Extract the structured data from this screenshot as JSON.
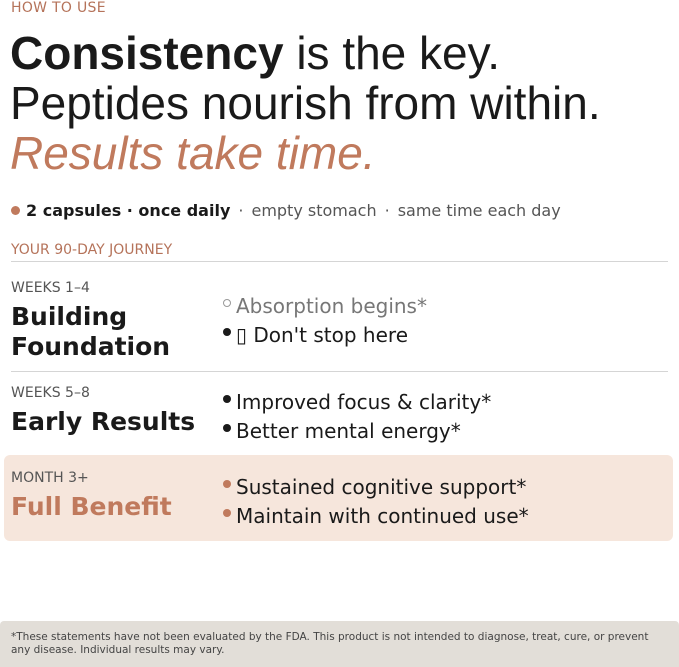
{
  "eyebrow": "HOW TO USE",
  "headline": {
    "bold": "Consistency",
    "rest": "is the key.",
    "line2": "Peptides nourish from within.",
    "line3": "Results take time."
  },
  "dosage": {
    "items": [
      "2 capsules · once daily",
      "empty stomach",
      "same time each day"
    ],
    "separator": "·"
  },
  "journey_label": "YOUR 90-DAY JOURNEY",
  "stages": [
    {
      "period": "WEEKS 1–4",
      "title": "Building Foundation",
      "bullets": [
        "Absorption begins*",
        "▯ Don't stop here"
      ]
    },
    {
      "period": "WEEKS 5–8",
      "title": "Early Results",
      "bullets": [
        "Improved focus & clarity*",
        "Better mental energy*"
      ]
    },
    {
      "period": "MONTH 3+",
      "title": "Full Benefit",
      "bullets": [
        "Sustained cognitive support*",
        "Maintain with continued use*"
      ]
    }
  ],
  "footnote": "*These statements have not been evaluated by the FDA. This product is not intended to diagnose, treat, cure, or prevent any disease. Individual results may vary."
}
